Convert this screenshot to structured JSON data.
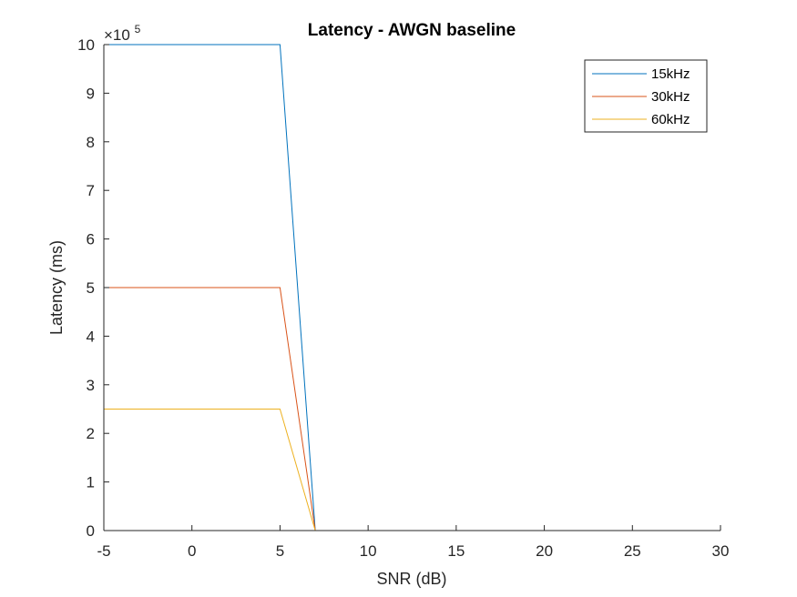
{
  "chart_data": {
    "type": "line",
    "title": "Latency - AWGN baseline",
    "xlabel": "SNR (dB)",
    "ylabel": "Latency (ms)",
    "y_exponent_label": "×10",
    "y_exponent_power": "5",
    "xlim": [
      -5,
      30
    ],
    "ylim": [
      0,
      1000000
    ],
    "xticks": [
      -5,
      0,
      5,
      10,
      15,
      20,
      25,
      30
    ],
    "xtick_labels": [
      "-5",
      "0",
      "5",
      "10",
      "15",
      "20",
      "25",
      "30"
    ],
    "yticks": [
      0,
      100000,
      200000,
      300000,
      400000,
      500000,
      600000,
      700000,
      800000,
      900000,
      1000000
    ],
    "ytick_labels": [
      "0",
      "1",
      "2",
      "3",
      "4",
      "5",
      "6",
      "7",
      "8",
      "9",
      "10"
    ],
    "grid": false,
    "legend_position": "top-right",
    "x": [
      -5,
      -3,
      -1,
      1,
      3,
      5,
      7,
      9,
      11,
      13,
      15,
      17,
      19,
      21,
      23,
      25,
      27,
      29
    ],
    "series": [
      {
        "name": "15kHz",
        "color": "#0072BD",
        "values": [
          1000000,
          1000000,
          1000000,
          1000000,
          1000000,
          1000000,
          0,
          0,
          0,
          0,
          0,
          0,
          0,
          0,
          0,
          0,
          0,
          0
        ]
      },
      {
        "name": "30kHz",
        "color": "#D95319",
        "values": [
          500000,
          500000,
          500000,
          500000,
          500000,
          500000,
          0,
          0,
          0,
          0,
          0,
          0,
          0,
          0,
          0,
          0,
          0,
          0
        ]
      },
      {
        "name": "60kHz",
        "color": "#EDB120",
        "values": [
          250000,
          250000,
          250000,
          250000,
          250000,
          250000,
          0,
          0,
          0,
          0,
          0,
          0,
          0,
          0,
          0,
          0,
          0,
          0
        ]
      }
    ]
  }
}
